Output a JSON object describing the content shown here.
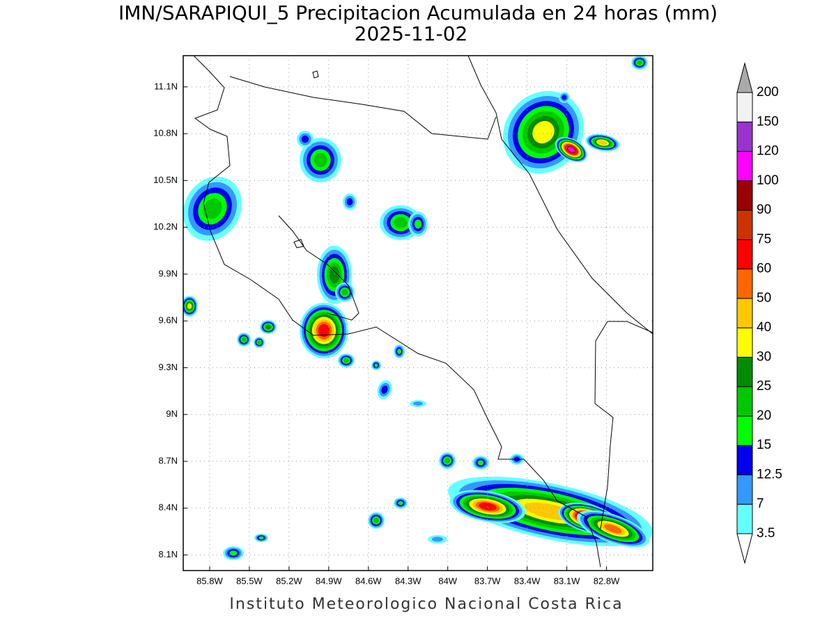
{
  "title": "IMN/SARAPIQUI_5 Precipitacion Acumulada en 24 horas (mm)",
  "date": "2025-11-02",
  "map": {
    "xlim": [
      -86.0,
      -82.45
    ],
    "ylim": [
      8.0,
      11.3
    ],
    "xticks": [
      {
        "value": -85.8,
        "label": "85.8W"
      },
      {
        "value": -85.5,
        "label": "85.5W"
      },
      {
        "value": -85.2,
        "label": "85.2W"
      },
      {
        "value": -84.9,
        "label": "84.9W"
      },
      {
        "value": -84.6,
        "label": "84.6W"
      },
      {
        "value": -84.3,
        "label": "84.3W"
      },
      {
        "value": -84.0,
        "label": "84W"
      },
      {
        "value": -83.7,
        "label": "83.7W"
      },
      {
        "value": -83.4,
        "label": "83.4W"
      },
      {
        "value": -83.1,
        "label": "83.1W"
      },
      {
        "value": -82.8,
        "label": "82.8W"
      }
    ],
    "yticks": [
      {
        "value": 11.1,
        "label": "11.1N"
      },
      {
        "value": 10.8,
        "label": "10.8N"
      },
      {
        "value": 10.5,
        "label": "10.5N"
      },
      {
        "value": 10.2,
        "label": "10.2N"
      },
      {
        "value": 9.9,
        "label": "9.9N"
      },
      {
        "value": 9.6,
        "label": "9.6N"
      },
      {
        "value": 9.3,
        "label": "9.3N"
      },
      {
        "value": 9.0,
        "label": "9N"
      },
      {
        "value": 8.7,
        "label": "8.7N"
      },
      {
        "value": 8.4,
        "label": "8.4N"
      },
      {
        "value": 8.1,
        "label": "8.1N"
      }
    ],
    "grid": true
  },
  "colorbar": {
    "levels": [
      3.5,
      7,
      12.5,
      15,
      20,
      25,
      30,
      40,
      50,
      60,
      75,
      90,
      100,
      120,
      150,
      200
    ],
    "colors": [
      "#66ffff",
      "#3399ff",
      "#0000ee",
      "#00ff00",
      "#00c800",
      "#008c00",
      "#ffff00",
      "#ffc800",
      "#ff6600",
      "#ff0000",
      "#cc3300",
      "#990000",
      "#ff00ff",
      "#9933cc",
      "#f2f2f2"
    ],
    "under_color": "#ffffff",
    "over_color": "#aaaaaa"
  },
  "footer": "Instituto Meteorologico Nacional Costa Rica"
}
